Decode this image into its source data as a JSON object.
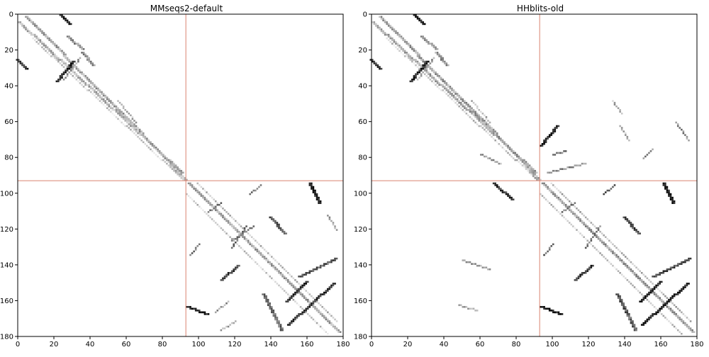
{
  "chart_data": [
    {
      "type": "heatmap",
      "title": "MMseqs2-default",
      "xlim": [
        0,
        180
      ],
      "ylim": [
        180,
        0
      ],
      "x_ticks": [
        0,
        20,
        40,
        60,
        80,
        100,
        120,
        140,
        160,
        180
      ],
      "y_ticks": [
        0,
        20,
        40,
        60,
        80,
        100,
        120,
        140,
        160,
        180
      ],
      "divider": [
        93,
        93
      ],
      "divider_color": "#d9826f",
      "colormap": "greys",
      "segments": [
        {
          "from": [
            1,
            4
          ],
          "to": [
            91,
            88
          ],
          "width": 2,
          "intensity": 0.3
        },
        {
          "from": [
            5,
            1
          ],
          "to": [
            90,
            88
          ],
          "width": 2,
          "intensity": 0.35
        },
        {
          "from": [
            8,
            13
          ],
          "to": [
            90,
            91
          ],
          "width": 1,
          "intensity": 0.18
        },
        {
          "from": [
            24,
            0
          ],
          "to": [
            29,
            5
          ],
          "width": 2,
          "intensity": 0.95
        },
        {
          "from": [
            0,
            25
          ],
          "to": [
            5,
            30
          ],
          "width": 2,
          "intensity": 0.85
        },
        {
          "from": [
            22,
            37
          ],
          "to": [
            31,
            26
          ],
          "width": 2,
          "intensity": 0.92
        },
        {
          "from": [
            25,
            36
          ],
          "to": [
            34,
            24
          ],
          "width": 1,
          "intensity": 0.4
        },
        {
          "from": [
            28,
            12
          ],
          "to": [
            36,
            19
          ],
          "width": 2,
          "intensity": 0.45
        },
        {
          "from": [
            36,
            21
          ],
          "to": [
            42,
            28
          ],
          "width": 2,
          "intensity": 0.45
        },
        {
          "from": [
            55,
            48
          ],
          "to": [
            65,
            60
          ],
          "width": 1,
          "intensity": 0.3
        },
        {
          "from": [
            85,
            84
          ],
          "to": [
            92,
            92
          ],
          "width": 3,
          "intensity": 0.3
        },
        {
          "from": [
            95,
            94
          ],
          "to": [
            178,
            177
          ],
          "width": 2,
          "intensity": 0.35
        },
        {
          "from": [
            99,
            94
          ],
          "to": [
            176,
            171
          ],
          "width": 1,
          "intensity": 0.25
        },
        {
          "from": [
            93,
            100
          ],
          "to": [
            171,
            178
          ],
          "width": 1,
          "intensity": 0.2
        },
        {
          "from": [
            162,
            94
          ],
          "to": [
            167,
            105
          ],
          "width": 2,
          "intensity": 0.95
        },
        {
          "from": [
            94,
            163
          ],
          "to": [
            105,
            167
          ],
          "width": 2,
          "intensity": 0.9
        },
        {
          "from": [
            149,
            160
          ],
          "to": [
            160,
            149
          ],
          "width": 2,
          "intensity": 0.88
        },
        {
          "from": [
            150,
            173
          ],
          "to": [
            175,
            150
          ],
          "width": 2,
          "intensity": 0.8
        },
        {
          "from": [
            156,
            146
          ],
          "to": [
            176,
            136
          ],
          "width": 2,
          "intensity": 0.65
        },
        {
          "from": [
            136,
            156
          ],
          "to": [
            146,
            176
          ],
          "width": 2,
          "intensity": 0.6
        },
        {
          "from": [
            128,
            100
          ],
          "to": [
            134,
            95
          ],
          "width": 1,
          "intensity": 0.6
        },
        {
          "from": [
            100,
            128
          ],
          "to": [
            95,
            134
          ],
          "width": 1,
          "intensity": 0.55
        },
        {
          "from": [
            113,
            148
          ],
          "to": [
            122,
            140
          ],
          "width": 2,
          "intensity": 0.75
        },
        {
          "from": [
            140,
            113
          ],
          "to": [
            148,
            122
          ],
          "width": 2,
          "intensity": 0.7
        },
        {
          "from": [
            118,
            130
          ],
          "to": [
            126,
            118
          ],
          "width": 1,
          "intensity": 0.55
        },
        {
          "from": [
            130,
            118
          ],
          "to": [
            118,
            126
          ],
          "width": 1,
          "intensity": 0.5
        },
        {
          "from": [
            105,
            110
          ],
          "to": [
            112,
            105
          ],
          "width": 1,
          "intensity": 0.55
        },
        {
          "from": [
            116,
            160
          ],
          "to": [
            109,
            166
          ],
          "width": 1,
          "intensity": 0.4
        },
        {
          "from": [
            112,
            176
          ],
          "to": [
            120,
            171
          ],
          "width": 1,
          "intensity": 0.35
        },
        {
          "from": [
            171,
            112
          ],
          "to": [
            176,
            120
          ],
          "width": 1,
          "intensity": 0.35
        }
      ]
    },
    {
      "type": "heatmap",
      "title": "HHblits-old",
      "xlim": [
        0,
        180
      ],
      "ylim": [
        180,
        0
      ],
      "x_ticks": [
        0,
        20,
        40,
        60,
        80,
        100,
        120,
        140,
        160,
        180
      ],
      "y_ticks": [
        0,
        20,
        40,
        60,
        80,
        100,
        120,
        140,
        160,
        180
      ],
      "divider": [
        93,
        93
      ],
      "divider_color": "#d9826f",
      "colormap": "greys",
      "segments": [
        {
          "from": [
            1,
            4
          ],
          "to": [
            91,
            88
          ],
          "width": 2,
          "intensity": 0.35
        },
        {
          "from": [
            5,
            1
          ],
          "to": [
            90,
            88
          ],
          "width": 2,
          "intensity": 0.38
        },
        {
          "from": [
            8,
            13
          ],
          "to": [
            90,
            91
          ],
          "width": 1,
          "intensity": 0.2
        },
        {
          "from": [
            24,
            0
          ],
          "to": [
            29,
            5
          ],
          "width": 2,
          "intensity": 0.95
        },
        {
          "from": [
            0,
            25
          ],
          "to": [
            5,
            30
          ],
          "width": 2,
          "intensity": 0.85
        },
        {
          "from": [
            22,
            37
          ],
          "to": [
            31,
            26
          ],
          "width": 2,
          "intensity": 0.92
        },
        {
          "from": [
            25,
            36
          ],
          "to": [
            34,
            24
          ],
          "width": 1,
          "intensity": 0.4
        },
        {
          "from": [
            28,
            12
          ],
          "to": [
            36,
            19
          ],
          "width": 2,
          "intensity": 0.45
        },
        {
          "from": [
            36,
            21
          ],
          "to": [
            42,
            28
          ],
          "width": 2,
          "intensity": 0.45
        },
        {
          "from": [
            55,
            48
          ],
          "to": [
            65,
            60
          ],
          "width": 1,
          "intensity": 0.3
        },
        {
          "from": [
            85,
            84
          ],
          "to": [
            92,
            92
          ],
          "width": 3,
          "intensity": 0.3
        },
        {
          "from": [
            95,
            94
          ],
          "to": [
            178,
            177
          ],
          "width": 2,
          "intensity": 0.4
        },
        {
          "from": [
            99,
            94
          ],
          "to": [
            176,
            171
          ],
          "width": 1,
          "intensity": 0.28
        },
        {
          "from": [
            93,
            100
          ],
          "to": [
            171,
            178
          ],
          "width": 1,
          "intensity": 0.22
        },
        {
          "from": [
            162,
            94
          ],
          "to": [
            167,
            105
          ],
          "width": 2,
          "intensity": 0.95
        },
        {
          "from": [
            94,
            163
          ],
          "to": [
            105,
            167
          ],
          "width": 2,
          "intensity": 0.95
        },
        {
          "from": [
            149,
            160
          ],
          "to": [
            160,
            149
          ],
          "width": 2,
          "intensity": 0.9
        },
        {
          "from": [
            150,
            173
          ],
          "to": [
            175,
            150
          ],
          "width": 2,
          "intensity": 0.9
        },
        {
          "from": [
            156,
            146
          ],
          "to": [
            176,
            136
          ],
          "width": 2,
          "intensity": 0.7
        },
        {
          "from": [
            136,
            156
          ],
          "to": [
            146,
            176
          ],
          "width": 2,
          "intensity": 0.65
        },
        {
          "from": [
            128,
            100
          ],
          "to": [
            134,
            95
          ],
          "width": 1,
          "intensity": 0.65
        },
        {
          "from": [
            100,
            128
          ],
          "to": [
            95,
            134
          ],
          "width": 1,
          "intensity": 0.6
        },
        {
          "from": [
            113,
            148
          ],
          "to": [
            122,
            140
          ],
          "width": 2,
          "intensity": 0.8
        },
        {
          "from": [
            140,
            113
          ],
          "to": [
            148,
            122
          ],
          "width": 2,
          "intensity": 0.75
        },
        {
          "from": [
            118,
            130
          ],
          "to": [
            126,
            118
          ],
          "width": 1,
          "intensity": 0.55
        },
        {
          "from": [
            105,
            110
          ],
          "to": [
            112,
            105
          ],
          "width": 1,
          "intensity": 0.55
        },
        {
          "from": [
            94,
            73
          ],
          "to": [
            103,
            62
          ],
          "width": 2,
          "intensity": 0.85
        },
        {
          "from": [
            100,
            78
          ],
          "to": [
            107,
            76
          ],
          "width": 1,
          "intensity": 0.55
        },
        {
          "from": [
            97,
            88
          ],
          "to": [
            118,
            83
          ],
          "width": 1,
          "intensity": 0.45
        },
        {
          "from": [
            68,
            94
          ],
          "to": [
            78,
            103
          ],
          "width": 2,
          "intensity": 0.8
        },
        {
          "from": [
            60,
            78
          ],
          "to": [
            71,
            83
          ],
          "width": 1,
          "intensity": 0.4
        },
        {
          "from": [
            48,
            162
          ],
          "to": [
            58,
            165
          ],
          "width": 1,
          "intensity": 0.35
        },
        {
          "from": [
            50,
            137
          ],
          "to": [
            65,
            142
          ],
          "width": 1,
          "intensity": 0.4
        },
        {
          "from": [
            155,
            75
          ],
          "to": [
            150,
            80
          ],
          "width": 1,
          "intensity": 0.45
        },
        {
          "from": [
            133,
            48
          ],
          "to": [
            138,
            55
          ],
          "width": 1,
          "intensity": 0.3
        },
        {
          "from": [
            137,
            62
          ],
          "to": [
            142,
            70
          ],
          "width": 1,
          "intensity": 0.3
        },
        {
          "from": [
            168,
            60
          ],
          "to": [
            175,
            70
          ],
          "width": 1,
          "intensity": 0.45
        }
      ]
    }
  ]
}
